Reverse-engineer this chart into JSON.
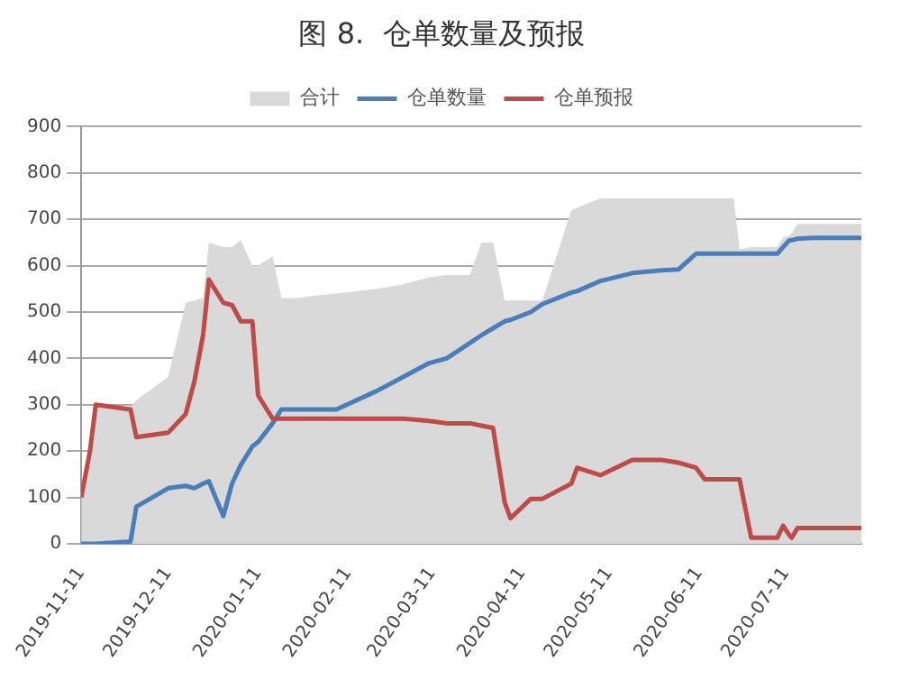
{
  "chart_data": {
    "type": "line",
    "title": "图 8.  仓单数量及预报",
    "x": [
      "2019-11-11",
      "2019-11-14",
      "2019-11-16",
      "2019-11-28",
      "2019-11-30",
      "2019-12-11",
      "2019-12-17",
      "2019-12-20",
      "2019-12-23",
      "2019-12-25",
      "2019-12-30",
      "2020-01-02",
      "2020-01-05",
      "2020-01-09",
      "2020-01-11",
      "2020-01-16",
      "2020-01-19",
      "2020-01-24",
      "2020-01-30",
      "2020-02-07",
      "2020-02-21",
      "2020-03-01",
      "2020-03-10",
      "2020-03-16",
      "2020-03-24",
      "2020-03-28",
      "2020-04-01",
      "2020-04-05",
      "2020-04-07",
      "2020-04-14",
      "2020-04-18",
      "2020-04-28",
      "2020-04-30",
      "2020-05-08",
      "2020-05-19",
      "2020-05-29",
      "2020-06-04",
      "2020-06-10",
      "2020-06-13",
      "2020-06-23",
      "2020-06-25",
      "2020-06-29",
      "2020-07-08",
      "2020-07-10",
      "2020-07-12",
      "2020-07-13",
      "2020-07-15",
      "2020-07-20",
      "2020-08-06"
    ],
    "series": [
      {
        "name": "合计",
        "type": "area",
        "color": "#d9d9d9",
        "values": [
          100,
          200,
          300,
          295,
          310,
          360,
          520,
          525,
          530,
          650,
          640,
          640,
          655,
          600,
          600,
          620,
          530,
          530,
          535,
          540,
          550,
          560,
          575,
          580,
          580,
          650,
          650,
          525,
          525,
          525,
          525,
          720,
          725,
          745,
          745,
          745,
          745,
          745,
          745,
          745,
          635,
          640,
          640,
          660,
          665,
          670,
          690,
          690,
          690
        ]
      },
      {
        "name": "仓单数量",
        "color": "#4a7ebb",
        "values": [
          0,
          0,
          0,
          5,
          80,
          120,
          125,
          120,
          130,
          135,
          60,
          130,
          170,
          210,
          220,
          260,
          290,
          290,
          290,
          290,
          330,
          360,
          390,
          400,
          433,
          450,
          465,
          480,
          483,
          500,
          517,
          542,
          545,
          567,
          584,
          590,
          592,
          626,
          626,
          626,
          626,
          626,
          626,
          640,
          654,
          655,
          658,
          660,
          660
        ]
      },
      {
        "name": "仓单预报",
        "color": "#be4b48",
        "values": [
          100,
          200,
          300,
          290,
          230,
          240,
          280,
          350,
          450,
          570,
          520,
          515,
          480,
          480,
          320,
          270,
          270,
          270,
          270,
          270,
          270,
          270,
          265,
          260,
          260,
          255,
          250,
          90,
          55,
          97,
          97,
          130,
          164,
          148,
          181,
          181,
          175,
          164,
          139,
          139,
          139,
          13,
          13,
          39,
          20,
          13,
          34,
          34,
          34
        ]
      }
    ],
    "xlim": [
      "2019-11-11",
      "2020-08-06"
    ],
    "xticks": [
      "2019-11-11",
      "2019-12-11",
      "2020-01-11",
      "2020-02-11",
      "2020-03-11",
      "2020-04-11",
      "2020-05-11",
      "2020-06-11",
      "2020-07-11"
    ],
    "ylim": [
      0,
      900
    ],
    "yticks": [
      0,
      100,
      200,
      300,
      400,
      500,
      600,
      700,
      800,
      900
    ],
    "grid": "y",
    "legend": "top",
    "marker": "none"
  }
}
